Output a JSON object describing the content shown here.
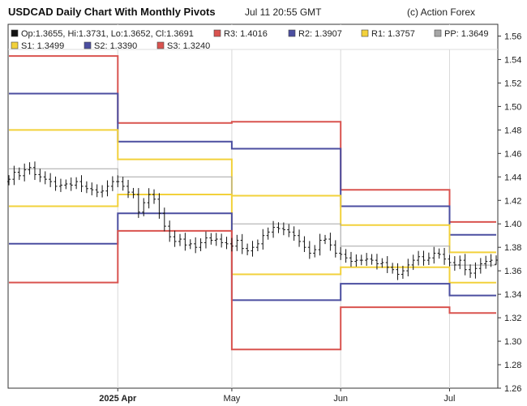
{
  "header": {
    "title": "USDCAD Daily Chart With Monthly Pivots",
    "datetime": "Jul 11 20:55 GMT",
    "copyright": "(c) Action Forex"
  },
  "chart_data": {
    "type": "ohlc",
    "symbol": "USDCAD",
    "ohlc_label": "Op:1.3655, Hi:1.3731, Lo:1.3652, Cl:1.3691",
    "last_bar": {
      "open": 1.3655,
      "high": 1.3731,
      "low": 1.3652,
      "close": 1.3691
    },
    "ylim": [
      1.26,
      1.57
    ],
    "y_ticks": [
      "1.26",
      "1.28",
      "1.30",
      "1.32",
      "1.34",
      "1.36",
      "1.38",
      "1.40",
      "1.42",
      "1.44",
      "1.46",
      "1.48",
      "1.50",
      "1.52",
      "1.54",
      "1.56"
    ],
    "x_ticks": [
      {
        "label": "2025 Apr",
        "bar": 21
      },
      {
        "label": "May",
        "bar": 43
      },
      {
        "label": "Jun",
        "bar": 64
      },
      {
        "label": "Jul",
        "bar": 85
      }
    ],
    "pivot_levels": [
      {
        "name": "R3",
        "label": "R3: 1.4016",
        "color": "#d9534f",
        "values": [
          1.543,
          1.486,
          1.487,
          1.429,
          1.4016
        ]
      },
      {
        "name": "R2",
        "label": "R2: 1.3907",
        "color": "#4b4ea0",
        "values": [
          1.511,
          1.47,
          1.464,
          1.415,
          1.3907
        ]
      },
      {
        "name": "R1",
        "label": "R1: 1.3757",
        "color": "#f2d13b",
        "values": [
          1.48,
          1.455,
          1.424,
          1.399,
          1.3757
        ]
      },
      {
        "name": "PP",
        "label": "PP: 1.3649",
        "color": "#a6a6a6",
        "values": [
          1.447,
          1.44,
          1.4,
          1.381,
          1.3649
        ]
      },
      {
        "name": "S1",
        "label": "S1: 1.3499",
        "color": "#f2d13b",
        "values": [
          1.415,
          1.425,
          1.357,
          1.363,
          1.3499
        ]
      },
      {
        "name": "S2",
        "label": "S2: 1.3390",
        "color": "#4b4ea0",
        "values": [
          1.383,
          1.409,
          1.335,
          1.349,
          1.339
        ]
      },
      {
        "name": "S3",
        "label": "S3: 1.3240",
        "color": "#d9534f",
        "values": [
          1.35,
          1.394,
          1.293,
          1.329,
          1.324
        ]
      }
    ],
    "period_bars": [
      0,
      21,
      43,
      64,
      85,
      94
    ],
    "closes": [
      1.438,
      1.444,
      1.441,
      1.446,
      1.448,
      1.442,
      1.44,
      1.438,
      1.436,
      1.432,
      1.433,
      1.434,
      1.433,
      1.436,
      1.432,
      1.43,
      1.429,
      1.427,
      1.428,
      1.432,
      1.436,
      1.436,
      1.432,
      1.427,
      1.425,
      1.41,
      1.418,
      1.425,
      1.421,
      1.409,
      1.398,
      1.389,
      1.385,
      1.387,
      1.382,
      1.383,
      1.38,
      1.384,
      1.388,
      1.386,
      1.387,
      1.384,
      1.383,
      1.381,
      1.386,
      1.379,
      1.377,
      1.38,
      1.383,
      1.39,
      1.393,
      1.397,
      1.396,
      1.395,
      1.393,
      1.39,
      1.385,
      1.38,
      1.375,
      1.378,
      1.386,
      1.387,
      1.382,
      1.375,
      1.374,
      1.371,
      1.368,
      1.369,
      1.369,
      1.37,
      1.369,
      1.366,
      1.367,
      1.363,
      1.361,
      1.357,
      1.36,
      1.365,
      1.369,
      1.372,
      1.369,
      1.371,
      1.375,
      1.374,
      1.37,
      1.367,
      1.365,
      1.369,
      1.361,
      1.358,
      1.362,
      1.366,
      1.368,
      1.369,
      1.3691
    ]
  }
}
